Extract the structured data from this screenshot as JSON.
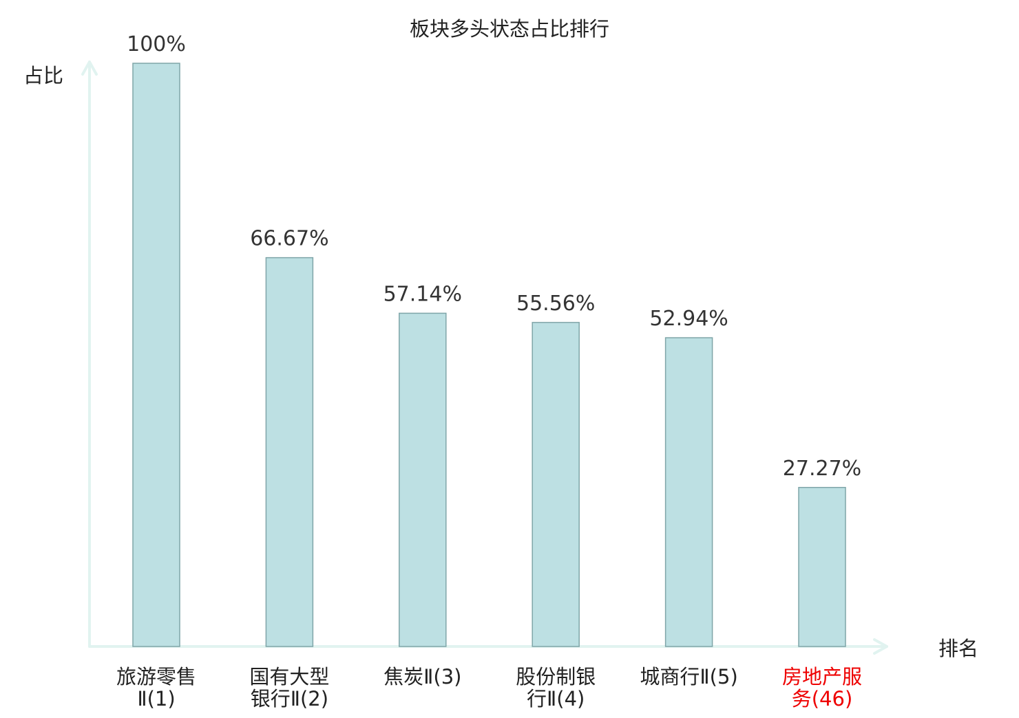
{
  "chart_data": {
    "type": "bar",
    "title": "板块多头状态占比排行",
    "ylabel": "占比",
    "xlabel": "排名",
    "categories": [
      [
        "旅游零售",
        "Ⅱ(1)"
      ],
      [
        "国有大型",
        "银行Ⅱ(2)"
      ],
      [
        "焦炭Ⅱ(3)"
      ],
      [
        "股份制银",
        "行Ⅱ(4)"
      ],
      [
        "城商行Ⅱ(5)"
      ],
      [
        "房地产服",
        "务(46)"
      ]
    ],
    "highlight_index": 5,
    "values": [
      100,
      66.67,
      57.14,
      55.56,
      52.94,
      27.27
    ],
    "value_labels": [
      "100%",
      "66.67%",
      "57.14%",
      "55.56%",
      "52.94%",
      "27.27%"
    ],
    "ylim": [
      0,
      100
    ],
    "grid": false,
    "colors": {
      "bar_fill": "#bde0e3",
      "bar_stroke": "#7fa5a8",
      "axis": "#e1f3f0",
      "text": "#333333",
      "label": "#222222",
      "highlight": "#ee0000"
    }
  }
}
